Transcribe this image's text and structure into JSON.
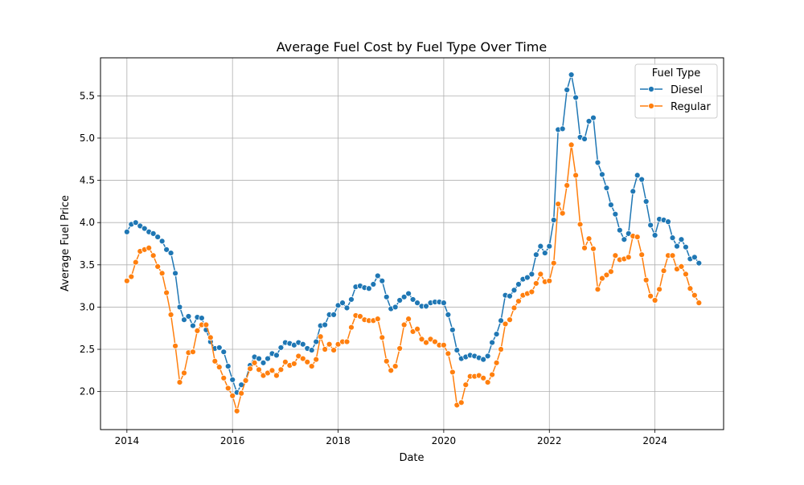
{
  "chart_data": {
    "type": "line",
    "title": "Average Fuel Cost by Fuel Type Over Time",
    "xlabel": "Date",
    "ylabel": "Average Fuel Price",
    "x_start": "2014-01",
    "x_step": "1 month",
    "xlim": [
      2013.5,
      2025.3
    ],
    "ylim": [
      1.55,
      5.95
    ],
    "x_ticks": [
      2014,
      2016,
      2018,
      2020,
      2022,
      2024
    ],
    "x_tick_labels": [
      "2014",
      "2016",
      "2018",
      "2020",
      "2022",
      "2024"
    ],
    "y_ticks": [
      2.0,
      2.5,
      3.0,
      3.5,
      4.0,
      4.5,
      5.0,
      5.5
    ],
    "y_tick_labels": [
      "2.0",
      "2.5",
      "3.0",
      "3.5",
      "4.0",
      "4.5",
      "5.0",
      "5.5"
    ],
    "grid": true,
    "legend": {
      "title": "Fuel Type",
      "placement": "top-right"
    },
    "series": [
      {
        "name": "Diesel",
        "color": "#1f77b4",
        "values": [
          3.89,
          3.98,
          4.0,
          3.96,
          3.93,
          3.89,
          3.87,
          3.83,
          3.78,
          3.68,
          3.64,
          3.4,
          3.0,
          2.85,
          2.89,
          2.78,
          2.88,
          2.87,
          2.73,
          2.59,
          2.51,
          2.52,
          2.47,
          2.3,
          2.14,
          1.99,
          2.08,
          2.14,
          2.31,
          2.41,
          2.39,
          2.34,
          2.39,
          2.45,
          2.43,
          2.52,
          2.58,
          2.57,
          2.55,
          2.58,
          2.56,
          2.51,
          2.49,
          2.59,
          2.78,
          2.79,
          2.91,
          2.91,
          3.02,
          3.05,
          2.99,
          3.09,
          3.24,
          3.25,
          3.23,
          3.22,
          3.27,
          3.37,
          3.31,
          3.12,
          2.98,
          3.0,
          3.08,
          3.12,
          3.16,
          3.09,
          3.05,
          3.01,
          3.01,
          3.05,
          3.06,
          3.06,
          3.05,
          2.91,
          2.73,
          2.49,
          2.39,
          2.41,
          2.43,
          2.42,
          2.4,
          2.38,
          2.42,
          2.58,
          2.68,
          2.84,
          3.14,
          3.13,
          3.2,
          3.27,
          3.33,
          3.35,
          3.39,
          3.62,
          3.72,
          3.64,
          3.72,
          4.03,
          5.1,
          5.11,
          5.57,
          5.75,
          5.48,
          5.01,
          4.99,
          5.2,
          5.24,
          4.71,
          4.57,
          4.41,
          4.21,
          4.1,
          3.91,
          3.8,
          3.87,
          4.37,
          4.56,
          4.51,
          4.25,
          3.97,
          3.85,
          4.04,
          4.03,
          4.01,
          3.82,
          3.72,
          3.8,
          3.71,
          3.57,
          3.59,
          3.52
        ]
      },
      {
        "name": "Regular",
        "color": "#ff7f0e",
        "values": [
          3.31,
          3.36,
          3.53,
          3.66,
          3.68,
          3.7,
          3.61,
          3.48,
          3.4,
          3.17,
          2.91,
          2.54,
          2.11,
          2.22,
          2.46,
          2.47,
          2.72,
          2.79,
          2.79,
          2.64,
          2.36,
          2.29,
          2.16,
          2.04,
          1.95,
          1.77,
          1.98,
          2.13,
          2.27,
          2.34,
          2.26,
          2.19,
          2.22,
          2.25,
          2.19,
          2.26,
          2.35,
          2.31,
          2.33,
          2.42,
          2.39,
          2.35,
          2.3,
          2.38,
          2.65,
          2.5,
          2.56,
          2.49,
          2.56,
          2.59,
          2.59,
          2.76,
          2.9,
          2.89,
          2.85,
          2.84,
          2.84,
          2.86,
          2.64,
          2.36,
          2.25,
          2.3,
          2.51,
          2.79,
          2.86,
          2.71,
          2.74,
          2.62,
          2.58,
          2.62,
          2.59,
          2.55,
          2.55,
          2.45,
          2.23,
          1.84,
          1.87,
          2.08,
          2.18,
          2.18,
          2.19,
          2.16,
          2.11,
          2.2,
          2.34,
          2.5,
          2.8,
          2.85,
          2.99,
          3.07,
          3.14,
          3.16,
          3.18,
          3.28,
          3.39,
          3.3,
          3.31,
          3.52,
          4.22,
          4.11,
          4.44,
          4.92,
          4.56,
          3.98,
          3.7,
          3.81,
          3.69,
          3.21,
          3.34,
          3.38,
          3.42,
          3.61,
          3.56,
          3.57,
          3.59,
          3.84,
          3.83,
          3.62,
          3.32,
          3.13,
          3.08,
          3.21,
          3.43,
          3.61,
          3.61,
          3.45,
          3.48,
          3.39,
          3.22,
          3.14,
          3.05
        ]
      }
    ]
  }
}
